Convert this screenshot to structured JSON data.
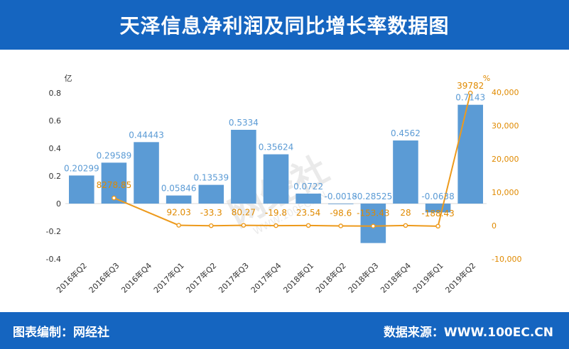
{
  "header": {
    "title": "天泽信息净利润及同比增长率数据图"
  },
  "footer": {
    "editor": "图表编制：网经社",
    "source": "数据来源：WWW.100EC.CN"
  },
  "watermark": {
    "text": "网经社",
    "sub": "WWW.100EC.CN"
  },
  "colors": {
    "bar": "#5b9bd5",
    "line": "#ed9a1c",
    "header": "#1565c0",
    "bar_label": "#5b9bd5",
    "line_label": "#e08a00"
  },
  "chart_data": {
    "type": "bar",
    "categories": [
      "2016年Q2",
      "2016年Q3",
      "2016年Q4",
      "2017年Q1",
      "2017年Q2",
      "2017年Q3",
      "2017年Q4",
      "2018年Q1",
      "2018年Q2",
      "2018年Q3",
      "2018年Q4",
      "2019年Q1",
      "2019年Q2"
    ],
    "series": [
      {
        "name": "",
        "type": "bar",
        "axis": "left",
        "values": [
          0.20299,
          0.29589,
          0.44443,
          0.05846,
          0.13539,
          0.5334,
          0.35624,
          0.0722,
          -0.0018,
          -0.28525,
          0.4562,
          -0.0638,
          0.7143
        ],
        "labels": [
          "0.20299",
          "0.29589",
          "0.44443",
          "0.05846",
          "0.13539",
          "0.5334",
          "0.35624",
          "0.0722",
          "-0.0018",
          "-0.28525",
          "0.4562",
          "-0.0638",
          "0.7143"
        ]
      },
      {
        "name": "",
        "type": "line",
        "axis": "right",
        "values": [
          null,
          8278.85,
          null,
          92.03,
          -33.3,
          80.27,
          -19.8,
          23.54,
          -98.6,
          -153.43,
          28,
          -188.43,
          39782
        ],
        "labels": [
          "",
          "8278.85",
          "",
          "92.03",
          "-33.3",
          "80.27",
          "-19.8",
          "23.54",
          "-98.6",
          "-153.43",
          "28",
          "-188.43",
          "39782"
        ]
      }
    ],
    "left_axis": {
      "unit": "亿",
      "min": -0.4,
      "max": 0.8,
      "ticks": [
        "-0.4",
        "-0.2",
        "0",
        "0.2",
        "0.4",
        "0.6",
        "0.8"
      ],
      "tick_values": [
        -0.4,
        -0.2,
        0,
        0.2,
        0.4,
        0.6,
        0.8
      ]
    },
    "right_axis": {
      "unit": "%",
      "min": -10000,
      "max": 40000,
      "ticks": [
        "-10,000",
        "0",
        "10,000",
        "20,000",
        "30,000",
        "40,000"
      ],
      "tick_values": [
        -10000,
        0,
        10000,
        20000,
        30000,
        40000
      ]
    },
    "grid": false,
    "legend": "none"
  }
}
